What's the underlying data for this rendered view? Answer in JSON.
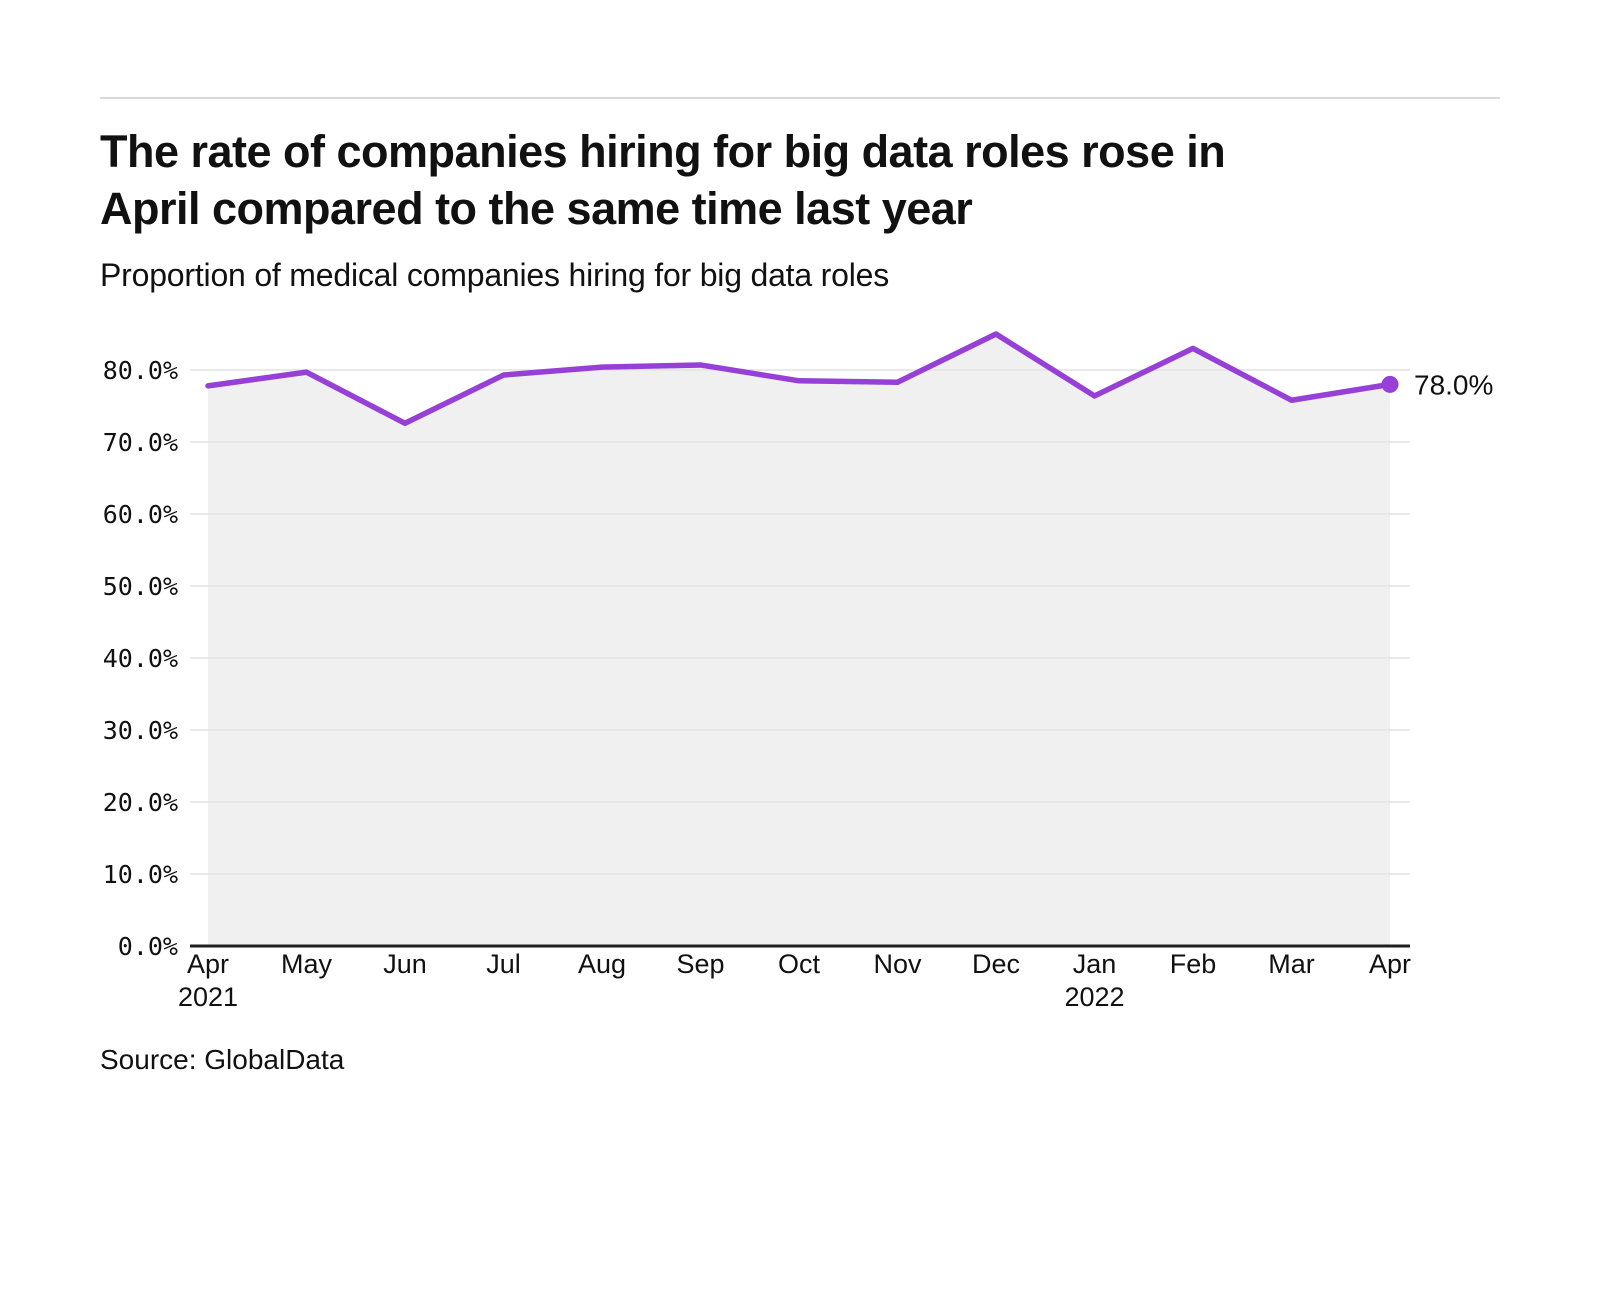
{
  "header": {
    "title": "The rate of companies hiring for big data roles rose in\nApril compared to the same time last year",
    "subtitle": "Proportion of medical companies hiring for big data roles"
  },
  "source": {
    "text": "Source: GlobalData"
  },
  "chart_data": {
    "type": "line",
    "title": "Proportion of medical companies hiring for big data roles",
    "categories": [
      {
        "month": "Apr",
        "year": "2021"
      },
      {
        "month": "May"
      },
      {
        "month": "Jun"
      },
      {
        "month": "Jul"
      },
      {
        "month": "Aug"
      },
      {
        "month": "Sep"
      },
      {
        "month": "Oct"
      },
      {
        "month": "Nov"
      },
      {
        "month": "Dec"
      },
      {
        "month": "Jan",
        "year": "2022"
      },
      {
        "month": "Feb"
      },
      {
        "month": "Mar"
      },
      {
        "month": "Apr"
      }
    ],
    "values": [
      77.8,
      79.7,
      72.6,
      79.3,
      80.4,
      80.7,
      78.5,
      78.3,
      85.0,
      76.4,
      83.0,
      75.8,
      78.0
    ],
    "point_label": "78.0%",
    "y_ticks": [
      {
        "value": 80,
        "label": "80.0%"
      },
      {
        "value": 70,
        "label": "70.0%"
      },
      {
        "value": 60,
        "label": "60.0%"
      },
      {
        "value": 50,
        "label": "50.0%"
      },
      {
        "value": 40,
        "label": "40.0%"
      },
      {
        "value": 30,
        "label": "30.0%"
      },
      {
        "value": 20,
        "label": "20.0%"
      },
      {
        "value": 10,
        "label": "10.0%"
      },
      {
        "value": 0,
        "label": "0.0%"
      }
    ],
    "ylim": [
      0,
      88
    ],
    "grid": true,
    "legend": "none",
    "colors": {
      "line": "#9640d7",
      "area": "#f0f0f0",
      "grid": "#e2e2e2",
      "axis": "#1f1f1f",
      "text": "#111111"
    }
  }
}
